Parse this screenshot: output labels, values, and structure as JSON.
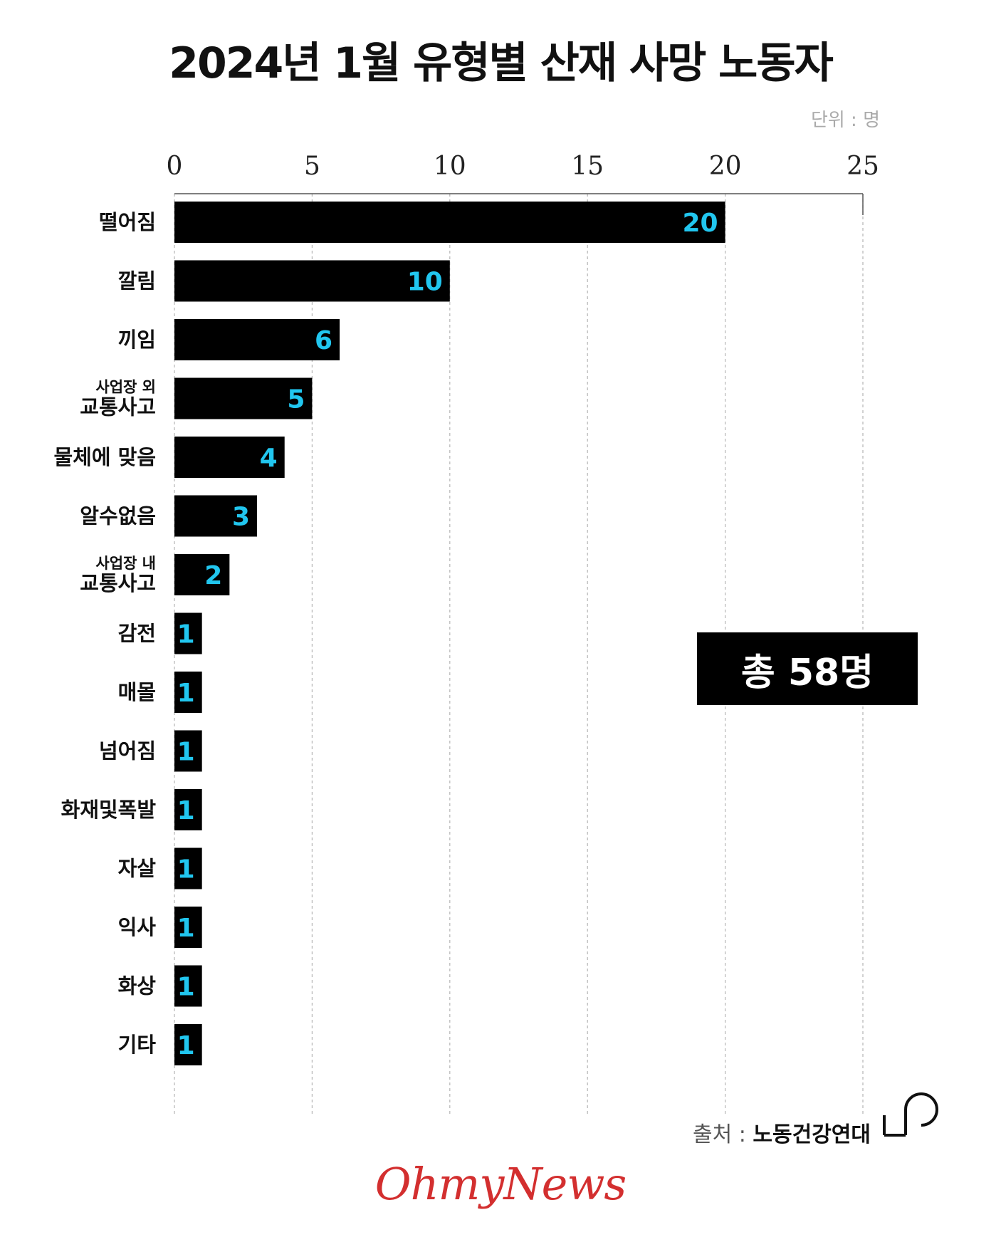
{
  "title": "2024년 1월 유형별 산재 사망 노동자",
  "unit_label": "단위 : 명",
  "total_label": "총 58명",
  "source": {
    "label": "출처 :",
    "name": "노동건강연대"
  },
  "brand": "OhmyNews",
  "colors": {
    "bar": "#000000",
    "value_text": "#21c6ef",
    "brand": "#d32f2f"
  },
  "chart_data": {
    "type": "bar",
    "orientation": "horizontal",
    "title": "2024년 1월 유형별 산재 사망 노동자",
    "xlabel": "",
    "ylabel": "",
    "xlim": [
      0,
      25
    ],
    "ticks": [
      0,
      5,
      10,
      15,
      20,
      25
    ],
    "grid": true,
    "categories": [
      "떨어짐",
      "깔림",
      "끼임",
      "사업장 외 교통사고",
      "물체에 맞음",
      "알수없음",
      "사업장 내 교통사고",
      "감전",
      "매몰",
      "넘어짐",
      "화재및폭발",
      "자살",
      "익사",
      "화상",
      "기타"
    ],
    "category_lines": [
      [
        "떨어짐"
      ],
      [
        "깔림"
      ],
      [
        "끼임"
      ],
      [
        "사업장 외",
        "교통사고"
      ],
      [
        "물체에 맞음"
      ],
      [
        "알수없음"
      ],
      [
        "사업장 내",
        "교통사고"
      ],
      [
        "감전"
      ],
      [
        "매몰"
      ],
      [
        "넘어짐"
      ],
      [
        "화재및폭발"
      ],
      [
        "자살"
      ],
      [
        "익사"
      ],
      [
        "화상"
      ],
      [
        "기타"
      ]
    ],
    "values": [
      20,
      10,
      6,
      5,
      4,
      3,
      2,
      1,
      1,
      1,
      1,
      1,
      1,
      1,
      1
    ]
  }
}
